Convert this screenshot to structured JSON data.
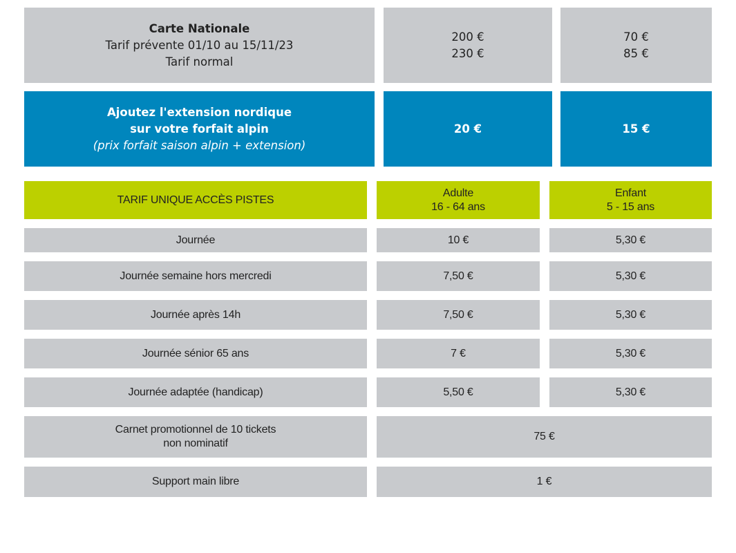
{
  "carte": {
    "title": "Carte Nationale",
    "lines": [
      "Tarif prévente 01/10 au 15/11/23",
      "Tarif normal"
    ],
    "adult": [
      "200 €",
      "230 €"
    ],
    "child": [
      "70 €",
      "85 €"
    ]
  },
  "extension": {
    "lines": [
      "Ajoutez l'extension nordique",
      "sur votre forfait alpin"
    ],
    "note": "(prix forfait saison alpin + extension)",
    "adult": "20 €",
    "child": "15 €"
  },
  "table": {
    "header": {
      "label": "TARIF UNIQUE ACCÈS PISTES",
      "adult": [
        "Adulte",
        "16 - 64 ans"
      ],
      "child": [
        "Enfant",
        "5 - 15 ans"
      ]
    },
    "rows": [
      [
        "Journée",
        "10 €",
        "5,30 €"
      ],
      [
        "Journée semaine hors mercredi",
        "7,50 €",
        "5,30 €"
      ],
      [
        "Journée après 14h",
        "7,50 €",
        "5,30 €"
      ],
      [
        "Journée sénior 65 ans",
        "7 €",
        "5,30 €"
      ],
      [
        "Journée adaptée (handicap)",
        "5,50 €",
        "5,30 €"
      ]
    ],
    "merged_rows": [
      {
        "label": [
          "Carnet promotionnel de 10 tickets",
          "non nominatif"
        ],
        "price": "75 €"
      },
      {
        "label": [
          "Support main libre"
        ],
        "price": "1 €"
      }
    ]
  }
}
